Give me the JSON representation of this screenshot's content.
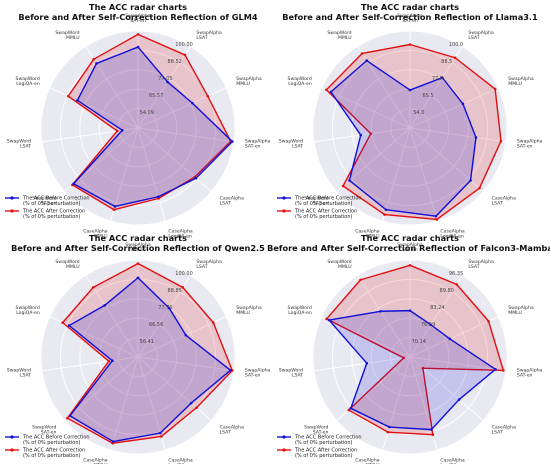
{
  "chart_data": [
    {
      "type": "radar",
      "title_line1": "The ACC radar charts",
      "title_line2": "Before and After Self-Correction Reflection of GLM4",
      "axes": [
        [
          "SwapAlpha",
          "SAT-en"
        ],
        [
          "SwapAlpha",
          "LSAT"
        ],
        [
          "SwapAlpha",
          "MMLU"
        ],
        [
          "SwapAlpha",
          "SAT-en"
        ],
        [
          "CaseAlpha",
          "LSAT"
        ],
        [
          "CaseAlpha",
          "LogiQA-en"
        ],
        [
          "CaseAlpha",
          "MMLU"
        ],
        [
          "SwapWord",
          "SAT-en"
        ],
        [
          "SwapWord",
          "LSAT"
        ],
        [
          "SwapWord",
          "LogiQA-en"
        ],
        [
          "SwapWord",
          "MMLU"
        ]
      ],
      "radial_ticks": [
        "54.09",
        "65.57",
        "77.05",
        "88.52",
        "100.00"
      ],
      "rmin": 42.6,
      "rmax": 100,
      "series": [
        {
          "name": "The ACC Before Correction (% of 0% perturbation)",
          "color": "#1010d8",
          "values": [
            90.5,
            75,
            78,
            99,
            88,
            85,
            91,
            93,
            52,
            82,
            88
          ]
        },
        {
          "name": "The ACC After Correction (% of 0% perturbation)",
          "color": "#e01010",
          "values": [
            98,
            94,
            88,
            98,
            87,
            86,
            93,
            94,
            55,
            88,
            91
          ]
        }
      ],
      "grid": true,
      "legend_position": "bottom-left"
    },
    {
      "type": "radar",
      "title_line1": "The ACC radar charts",
      "title_line2": "Before and After Self-Correction Reflection of Llama3.1",
      "axes": [
        [
          "SwapAlpha",
          "SAT-en"
        ],
        [
          "SwapAlpha",
          "LSAT"
        ],
        [
          "SwapAlpha",
          "MMLU"
        ],
        [
          "SwapAlpha",
          "SAT-en"
        ],
        [
          "CaseAlpha",
          "LSAT"
        ],
        [
          "CaseAlpha",
          "LogiQA-en"
        ],
        [
          "CaseAlpha",
          "MMLU"
        ],
        [
          "SwapWord",
          "SAT-en"
        ],
        [
          "SwapWord",
          "LSAT"
        ],
        [
          "SwapWord",
          "LogiQA-en"
        ],
        [
          "SwapWord",
          "MMLU"
        ]
      ],
      "radial_ticks": [
        "54.0",
        "65.5",
        "77.0",
        "88.5",
        "100.0"
      ],
      "rmin": 42.5,
      "rmax": 100,
      "series": [
        {
          "name": "The ACC Before Correction (% of 0% perturbation)",
          "color": "#1010d8",
          "values": [
            65,
            78,
            77,
            82,
            90,
            97,
            93,
            90,
            72,
            94,
            90
          ]
        },
        {
          "name": "The ACC After Correction (% of 0% perturbation)",
          "color": "#e01010",
          "values": [
            92,
            92,
            98,
            97,
            97,
            99,
            96,
            95,
            66,
            97,
            95
          ]
        }
      ],
      "grid": true,
      "legend_position": "bottom-left"
    },
    {
      "type": "radar",
      "title_line1": "The ACC radar charts",
      "title_line2": "Before and After Self-Correction Reflection of Qwen2.5",
      "axes": [
        [
          "SwapAlpha",
          "SAT-en"
        ],
        [
          "SwapAlpha",
          "LSAT"
        ],
        [
          "SwapAlpha",
          "MMLU"
        ],
        [
          "SwapAlpha",
          "SAT-en"
        ],
        [
          "CaseAlpha",
          "LSAT"
        ],
        [
          "CaseAlpha",
          "LogiQA-en"
        ],
        [
          "CaseAlpha",
          "MMLU"
        ],
        [
          "SwapWord",
          "SAT-en"
        ],
        [
          "SwapWord",
          "LSAT"
        ],
        [
          "SwapWord",
          "LogiQA-en"
        ],
        [
          "SwapWord",
          "MMLU"
        ]
      ],
      "radial_ticks": [
        "56.41",
        "66.56",
        "77.70",
        "88.85",
        "100.00"
      ],
      "rmin": 45.4,
      "rmax": 100,
      "series": [
        {
          "name": "The ACC Before Correction (% of 0% perturbation)",
          "color": "#1010d8",
          "values": [
            90,
            78,
            75,
            98,
            85,
            90,
            95,
            96,
            60,
            88,
            80
          ]
        },
        {
          "name": "The ACC After Correction (% of 0% perturbation)",
          "color": "#e01010",
          "values": [
            98,
            92,
            92,
            99,
            89,
            92,
            96,
            98,
            62,
            92,
            92
          ]
        }
      ],
      "grid": true,
      "legend_position": "bottom-left"
    },
    {
      "type": "radar",
      "title_line1": "The ACC radar charts",
      "title_line2": "Before and After Self-Correction Reflection of Falcon3-Mamba",
      "axes": [
        [
          "SwapAlpha",
          "SAT-en"
        ],
        [
          "SwapAlpha",
          "LSAT"
        ],
        [
          "SwapAlpha",
          "MMLU"
        ],
        [
          "SwapAlpha",
          "SAT-en"
        ],
        [
          "CaseAlpha",
          "LSAT"
        ],
        [
          "CaseAlpha",
          "LogiQA-en"
        ],
        [
          "CaseAlpha",
          "MMLU"
        ],
        [
          "SwapWord",
          "SAT-en"
        ],
        [
          "SwapWord",
          "LSAT"
        ],
        [
          "SwapWord",
          "LogiQA-en"
        ],
        [
          "SwapWord",
          "MMLU"
        ]
      ],
      "radial_ticks": [
        "70.14",
        "76.59",
        "83.24",
        "89.80",
        "96.35"
      ],
      "rmin": 63.6,
      "rmax": 100,
      "series": [
        {
          "name": "The ACC Before Correction (% of 0% perturbation)",
          "color": "#1010d8",
          "values": [
            81,
            78,
            80,
            96,
            88,
            92,
            91,
            93,
            80,
            97,
            84
          ]
        },
        {
          "name": "The ACC After Correction (% of 0% perturbation)",
          "color": "#e01010",
          "values": [
            98,
            96,
            96,
            99,
            70,
            94,
            93,
            94,
            66,
            98,
            98
          ]
        }
      ],
      "grid": true,
      "legend_position": "bottom-left"
    }
  ]
}
